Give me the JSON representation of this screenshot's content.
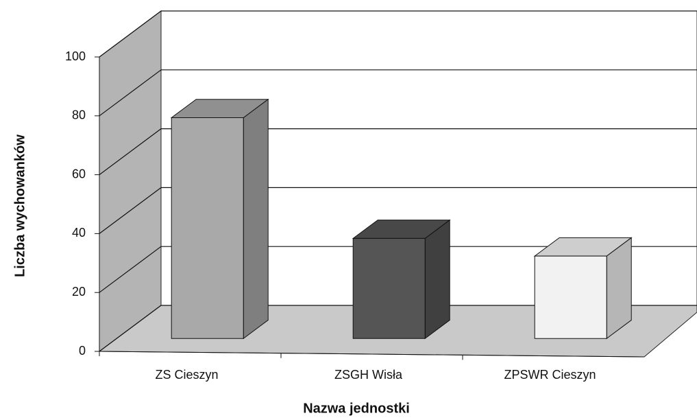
{
  "chart_data": {
    "type": "bar3d",
    "categories": [
      "ZS Cieszyn",
      "ZSGH Wisła",
      "ZPSWR Cieszyn"
    ],
    "values": [
      75,
      34,
      28
    ],
    "colors": [
      "#a9a9a9",
      "#555555",
      "#f2f2f2"
    ],
    "x_label": "Nazwa jednostki",
    "y_label": "Liczba wychowanków",
    "ylim": [
      0,
      100
    ],
    "yticks": [
      0,
      20,
      40,
      60,
      80,
      100
    ],
    "grid": true
  }
}
